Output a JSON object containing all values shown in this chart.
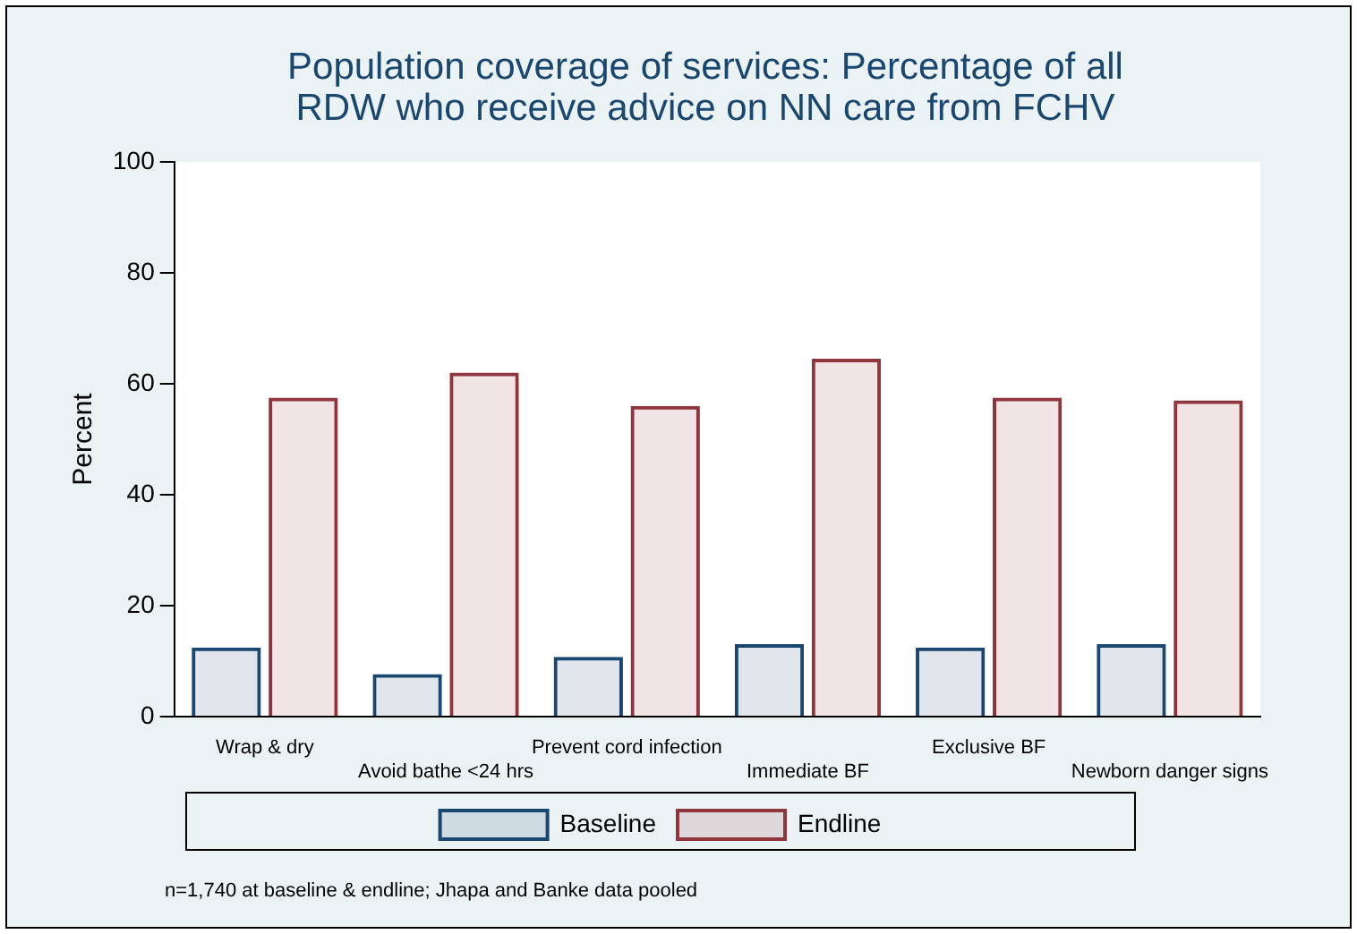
{
  "chart_data": {
    "type": "bar",
    "title": "Population coverage of services: Percentage of all RDW who receive advice on NN care from FCHV",
    "ylabel": "Percent",
    "categories": [
      "Wrap & dry",
      "Avoid bathe <24 hrs",
      "Prevent cord infection",
      "Immediate BF",
      "Exclusive BF",
      "Newborn danger signs"
    ],
    "series": [
      {
        "name": "Baseline",
        "color": "#1a476f",
        "values": [
          12.5,
          7.7,
          10.8,
          13.1,
          12.5,
          13.1
        ]
      },
      {
        "name": "Endline",
        "color": "#90353b",
        "values": [
          57.5,
          62,
          56,
          64.5,
          57.5,
          57
        ]
      }
    ],
    "ylim": [
      0,
      100
    ],
    "yticks": [
      0,
      20,
      40,
      60,
      80,
      100
    ],
    "grid": false,
    "legend": "bottom",
    "annotations": [
      "n=1,740 at baseline & endline; Jhapa and Banke data pooled"
    ]
  }
}
